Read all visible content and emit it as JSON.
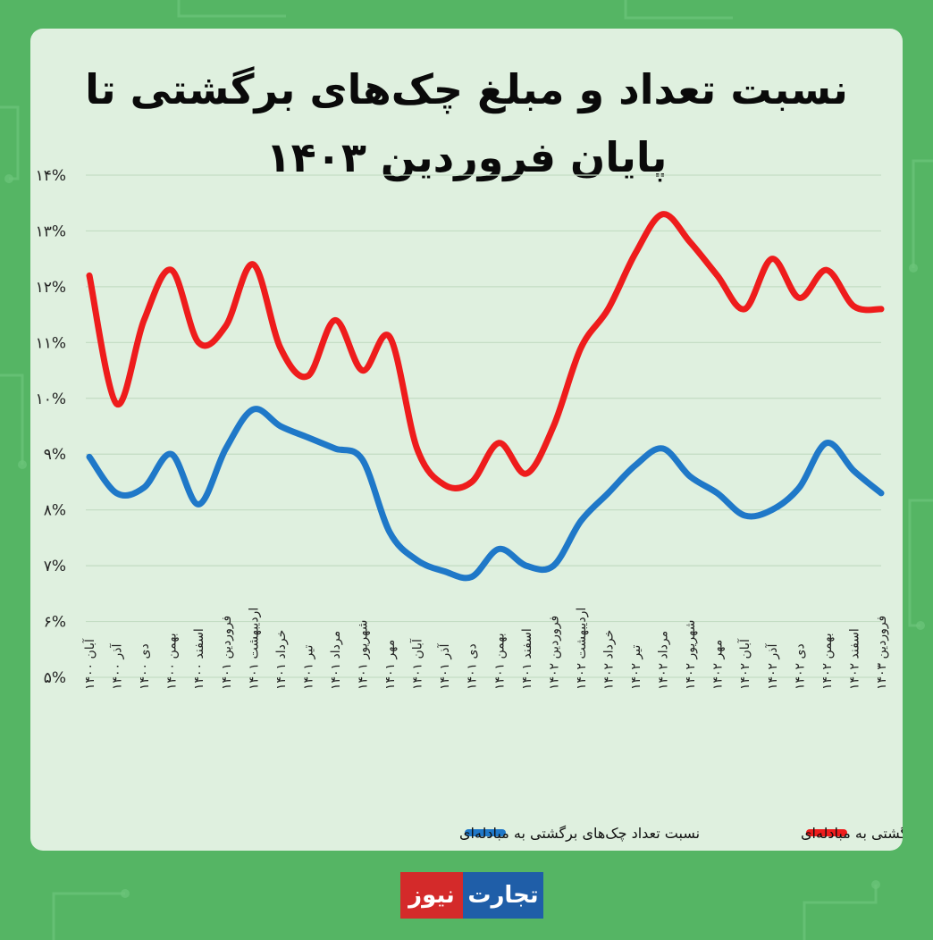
{
  "title": "نسبت تعداد و مبلغ چک‌های برگشتی تا پایان فروردین ۱۴۰۳",
  "logo": {
    "part1": "تجارت",
    "part2": "نیوز"
  },
  "colors": {
    "background": "#55b564",
    "card": "#dff0df",
    "count_series": "#1f78c8",
    "amount_series": "#ee1c1c"
  },
  "chart_data": {
    "type": "line",
    "x": [
      "آبان ۱۴۰۰",
      "آذر ۱۴۰۰",
      "دی ۱۴۰۰",
      "بهمن ۱۴۰۰",
      "اسفند ۱۴۰۰",
      "فروردین ۱۴۰۱",
      "اردیبهشت ۱۴۰۱",
      "خرداد ۱۴۰۱",
      "تیر ۱۴۰۱",
      "مرداد ۱۴۰۱",
      "شهریور ۱۴۰۱",
      "مهر ۱۴۰۱",
      "آبان ۱۴۰۱",
      "آذر ۱۴۰۱",
      "دی ۱۴۰۱",
      "بهمن ۱۴۰۱",
      "اسفند ۱۴۰۱",
      "فروردین ۱۴۰۲",
      "اردیبهشت ۱۴۰۲",
      "خرداد ۱۴۰۲",
      "تیر ۱۴۰۲",
      "مرداد ۱۴۰۲",
      "شهریور ۱۴۰۲",
      "مهر ۱۴۰۲",
      "آبان ۱۴۰۲",
      "آذر ۱۴۰۲",
      "دی ۱۴۰۲",
      "بهمن ۱۴۰۲",
      "اسفند ۱۴۰۲",
      "فروردین ۱۴۰۳"
    ],
    "yticks": [
      "۵%",
      "۶%",
      "۷%",
      "۸%",
      "۹%",
      "۱۰%",
      "۱۱%",
      "۱۲%",
      "۱۳%",
      "۱۴%"
    ],
    "ylim": [
      5,
      14
    ],
    "grid": true,
    "legend_position": "bottom",
    "series": [
      {
        "name": "نسبت مبلغ چک‌های برگشتی به مبادله‌ای",
        "color": "#ee1c1c",
        "values": [
          12.2,
          9.9,
          11.4,
          12.3,
          11.0,
          11.3,
          12.4,
          10.9,
          10.4,
          11.4,
          10.5,
          11.1,
          9.1,
          8.45,
          8.5,
          9.2,
          8.65,
          9.5,
          10.9,
          11.6,
          12.6,
          13.3,
          12.8,
          12.2,
          11.6,
          12.5,
          11.8,
          12.3,
          11.65,
          11.6
        ]
      },
      {
        "name": "نسبت تعداد چک‌های برگشتی به مبادله‌ای",
        "color": "#1f78c8",
        "values": [
          8.95,
          8.3,
          8.4,
          9.0,
          8.1,
          9.1,
          9.8,
          9.5,
          9.3,
          9.1,
          8.9,
          7.6,
          7.1,
          6.9,
          6.8,
          7.3,
          7.0,
          7.0,
          7.8,
          8.3,
          8.8,
          9.1,
          8.6,
          8.3,
          7.9,
          8.0,
          8.4,
          9.2,
          8.7,
          8.3
        ]
      }
    ]
  }
}
